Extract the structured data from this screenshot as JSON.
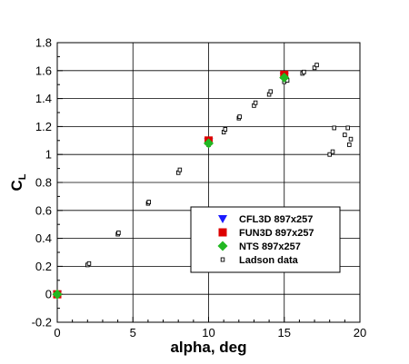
{
  "chart_data": {
    "type": "scatter",
    "xlabel": "alpha, deg",
    "ylabel": "C",
    "ylabel_sub": "L",
    "xlim": [
      0,
      20
    ],
    "ylim": [
      -0.2,
      1.8
    ],
    "xticks": [
      0,
      5,
      10,
      15,
      20
    ],
    "yticks": [
      -0.2,
      0,
      0.2,
      0.4,
      0.6,
      0.8,
      1,
      1.2,
      1.4,
      1.6,
      1.8
    ],
    "xtick_labels": [
      "0",
      "5",
      "10",
      "15",
      "20"
    ],
    "ytick_labels": [
      "-0.2",
      "0",
      "0.2",
      "0.4",
      "0.6",
      "0.8",
      "1",
      "1.2",
      "1.4",
      "1.6",
      "1.8"
    ],
    "grid": true,
    "legend_position": "lower-right",
    "series": [
      {
        "name": "CFL3D 897x257",
        "marker": "triangle-down",
        "color": "#1a1aff",
        "x": [
          0,
          10,
          15
        ],
        "y": [
          0.0,
          1.09,
          1.56
        ]
      },
      {
        "name": "FUN3D 897x257",
        "marker": "square",
        "color": "#dd0000",
        "x": [
          0,
          10,
          15
        ],
        "y": [
          0.0,
          1.1,
          1.57
        ]
      },
      {
        "name": "NTS 897x257",
        "marker": "diamond",
        "color": "#22b822",
        "x": [
          0,
          10,
          15
        ],
        "y": [
          0.0,
          1.08,
          1.55
        ]
      },
      {
        "name": "Ladson data",
        "marker": "open-square",
        "color": "#000000",
        "x": [
          0.0,
          0.1,
          2.0,
          2.1,
          4.0,
          4.05,
          6.0,
          6.05,
          8.0,
          8.1,
          10.0,
          10.1,
          11.0,
          11.1,
          12.0,
          12.05,
          13.0,
          13.1,
          14.0,
          14.1,
          15.0,
          15.2,
          16.2,
          16.3,
          17.0,
          17.15,
          18.0,
          18.2,
          18.3,
          19.0,
          19.2,
          19.3,
          19.4
        ],
        "y": [
          0.0,
          0.0,
          0.21,
          0.22,
          0.43,
          0.44,
          0.65,
          0.66,
          0.87,
          0.89,
          1.07,
          1.09,
          1.16,
          1.18,
          1.26,
          1.27,
          1.35,
          1.37,
          1.43,
          1.45,
          1.52,
          1.53,
          1.58,
          1.59,
          1.62,
          1.64,
          1.0,
          1.02,
          1.19,
          1.14,
          1.19,
          1.07,
          1.11
        ]
      }
    ]
  }
}
